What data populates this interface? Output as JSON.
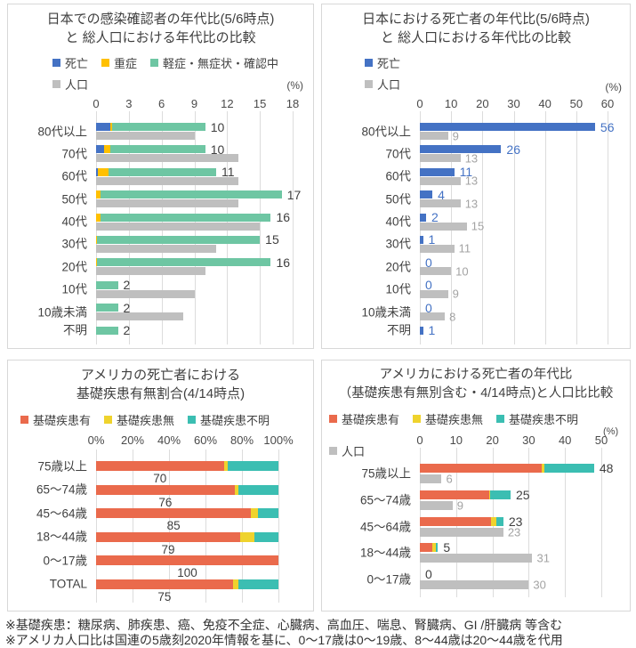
{
  "footer": {
    "line1": "※基礎疾患：糖尿病、肺疾患、癌、免疫不全症、心臓病、高血圧、喘息、腎臓病、GI /肝臓病 等含む",
    "line2": "※アメリカ人口比は国連の5歳刻2020年情報を基に、0〜17歳は0〜19歳、8〜44歳は20〜44歳を代用"
  },
  "colors": {
    "death_blue": "#4472C4",
    "severe_yellow": "#FFC000",
    "mild_green": "#6EC6A3",
    "population_gray": "#BFBFBF",
    "condition_red": "#EA6A4C",
    "no_condition_gold": "#EFD32D",
    "unknown_teal": "#3BBEB2",
    "gray_value_label": "#A3A3A3",
    "gridline": "#DCDCDC",
    "panel_border": "#D8D8D8",
    "text_dark": "#3F3F3F"
  },
  "chart_data": [
    {
      "type": "bar",
      "orientation": "horizontal",
      "title_lines": [
        "日本での感染確認者の年代比(5/6時点)",
        "と 総人口における年代比の比較"
      ],
      "percent_label": "(%)",
      "legend": [
        [
          {
            "label": "死亡",
            "color": "#4472C4"
          },
          {
            "label": "重症",
            "color": "#FFC000"
          },
          {
            "label": "軽症・無症状・確認中",
            "color": "#6EC6A3"
          }
        ],
        [
          {
            "label": "人口",
            "color": "#BFBFBF"
          }
        ]
      ],
      "series_names": [
        "死亡",
        "重症",
        "軽症・無症状・確認中"
      ],
      "series_colors": [
        "#4472C4",
        "#FFC000",
        "#6EC6A3"
      ],
      "population_color": "#BFBFBF",
      "axis": {
        "min": 0,
        "max": 18,
        "ticks": [
          "0",
          "3",
          "6",
          "9",
          "12",
          "15",
          "18"
        ]
      },
      "value_label_color": "#3F3F3F",
      "pop_labels": false,
      "label_below": false,
      "rows": [
        {
          "label": "80代以上",
          "segments": [
            1.3,
            0.2,
            8.5
          ],
          "value_label": "10",
          "population": 9,
          "population_label": null
        },
        {
          "label": "70代",
          "segments": [
            0.7,
            0.6,
            8.7
          ],
          "value_label": "10",
          "population": 13,
          "population_label": null
        },
        {
          "label": "60代",
          "segments": [
            0.2,
            0.9,
            9.9
          ],
          "value_label": "11",
          "population": 13,
          "population_label": null
        },
        {
          "label": "50代",
          "segments": [
            0,
            0.4,
            16.6
          ],
          "value_label": "17",
          "population": 13,
          "population_label": null
        },
        {
          "label": "40代",
          "segments": [
            0,
            0.4,
            15.6
          ],
          "value_label": "16",
          "population": 15,
          "population_label": null
        },
        {
          "label": "30代",
          "segments": [
            0,
            0.1,
            14.9
          ],
          "value_label": "15",
          "population": 11,
          "population_label": null
        },
        {
          "label": "20代",
          "segments": [
            0,
            0.1,
            15.9
          ],
          "value_label": "16",
          "population": 10,
          "population_label": null
        },
        {
          "label": "10代",
          "segments": [
            0,
            0,
            2
          ],
          "value_label": "2",
          "population": 9,
          "population_label": null
        },
        {
          "label": "10歳未満",
          "segments": [
            0,
            0,
            2
          ],
          "value_label": "2",
          "population": 8,
          "population_label": null
        },
        {
          "label": "不明",
          "segments": [
            0,
            0,
            2
          ],
          "value_label": "2",
          "population": null,
          "population_label": null
        }
      ]
    },
    {
      "type": "bar",
      "orientation": "horizontal",
      "title_lines": [
        "日本における死亡者の年代比(5/6時点)",
        "と 総人口における年代比の比較"
      ],
      "percent_label": "(%)",
      "legend": [
        [
          {
            "label": "死亡",
            "color": "#4472C4"
          }
        ],
        [
          {
            "label": "人口",
            "color": "#BFBFBF"
          }
        ]
      ],
      "series_names": [
        "死亡"
      ],
      "series_colors": [
        "#4472C4"
      ],
      "population_color": "#BFBFBF",
      "axis": {
        "min": 0,
        "max": 60,
        "ticks": [
          "0",
          "10",
          "20",
          "30",
          "40",
          "50",
          "60"
        ]
      },
      "value_label_color": "#4472C4",
      "pop_labels": true,
      "label_below": false,
      "rows": [
        {
          "label": "80代以上",
          "segments": [
            56
          ],
          "value_label": "56",
          "population": 9,
          "population_label": "9"
        },
        {
          "label": "70代",
          "segments": [
            26
          ],
          "value_label": "26",
          "population": 13,
          "population_label": "13"
        },
        {
          "label": "60代",
          "segments": [
            11
          ],
          "value_label": "11",
          "population": 13,
          "population_label": "13"
        },
        {
          "label": "50代",
          "segments": [
            4
          ],
          "value_label": "4",
          "population": 13,
          "population_label": "13"
        },
        {
          "label": "40代",
          "segments": [
            2
          ],
          "value_label": "2",
          "population": 15,
          "population_label": "15"
        },
        {
          "label": "30代",
          "segments": [
            1
          ],
          "value_label": "1",
          "population": 11,
          "population_label": "11"
        },
        {
          "label": "20代",
          "segments": [
            0
          ],
          "value_label": "0",
          "population": 10,
          "population_label": "10"
        },
        {
          "label": "10代",
          "segments": [
            0
          ],
          "value_label": "0",
          "population": 9,
          "population_label": "9"
        },
        {
          "label": "10歳未満",
          "segments": [
            0
          ],
          "value_label": "0",
          "population": 8,
          "population_label": "8"
        },
        {
          "label": "不明",
          "segments": [
            1
          ],
          "value_label": "1",
          "population": null,
          "population_label": null
        }
      ]
    },
    {
      "type": "bar",
      "orientation": "horizontal",
      "title_lines": [
        "アメリカの死亡者における",
        "基礎疾患有無割合(4/14時点)"
      ],
      "percent_label": null,
      "legend": [
        [
          {
            "label": "基礎疾患有",
            "color": "#EA6A4C"
          },
          {
            "label": "基礎疾患無",
            "color": "#EFD32D"
          },
          {
            "label": "基礎疾患不明",
            "color": "#3BBEB2"
          }
        ]
      ],
      "series_names": [
        "基礎疾患有",
        "基礎疾患無",
        "基礎疾患不明"
      ],
      "series_colors": [
        "#EA6A4C",
        "#EFD32D",
        "#3BBEB2"
      ],
      "population_color": null,
      "axis": {
        "min": 0,
        "max": 100,
        "ticks": [
          "0%",
          "20%",
          "40%",
          "60%",
          "80%",
          "100%"
        ]
      },
      "value_label_color": "#3F3F3F",
      "pop_labels": false,
      "label_below": true,
      "rows": [
        {
          "label": "75歳以上",
          "segments": [
            70,
            2,
            28
          ],
          "value_label": "70",
          "population": null,
          "population_label": null
        },
        {
          "label": "65〜74歳",
          "segments": [
            76,
            2,
            22
          ],
          "value_label": "76",
          "population": null,
          "population_label": null
        },
        {
          "label": "45〜64歳",
          "segments": [
            85,
            4,
            11
          ],
          "value_label": "85",
          "population": null,
          "population_label": null
        },
        {
          "label": "18〜44歳",
          "segments": [
            79,
            8,
            13
          ],
          "value_label": "79",
          "population": null,
          "population_label": null
        },
        {
          "label": "0〜17歳",
          "segments": [
            100,
            0,
            0
          ],
          "value_label": "100",
          "population": null,
          "population_label": null
        },
        {
          "label": "TOTAL",
          "segments": [
            75,
            3,
            22
          ],
          "value_label": "75",
          "population": null,
          "population_label": null
        }
      ]
    },
    {
      "type": "bar",
      "orientation": "horizontal",
      "title_lines": [
        "アメリカにおける死亡者の年代比",
        "（基礎疾患有無別含む・4/14時点)と人口比比較"
      ],
      "percent_label": "(%)",
      "legend": [
        [
          {
            "label": "基礎疾患有",
            "color": "#EA6A4C"
          },
          {
            "label": "基礎疾患無",
            "color": "#EFD32D"
          },
          {
            "label": "基礎疾患不明",
            "color": "#3BBEB2"
          }
        ],
        [
          {
            "label": "人口",
            "color": "#BFBFBF"
          }
        ]
      ],
      "series_names": [
        "基礎疾患有",
        "基礎疾患無",
        "基礎疾患不明"
      ],
      "series_colors": [
        "#EA6A4C",
        "#EFD32D",
        "#3BBEB2"
      ],
      "population_color": "#BFBFBF",
      "axis": {
        "min": 0,
        "max": 50,
        "ticks": [
          "0",
          "10",
          "20",
          "30",
          "40",
          "50"
        ]
      },
      "value_label_color": "#3F3F3F",
      "pop_labels": true,
      "label_below": false,
      "rows": [
        {
          "label": "75歳以上",
          "segments": [
            33.5,
            0.7,
            13.8
          ],
          "value_label": "48",
          "population": 6,
          "population_label": "6"
        },
        {
          "label": "65〜74歳",
          "segments": [
            19,
            0.4,
            5.6
          ],
          "value_label": "25",
          "population": 9,
          "population_label": "9"
        },
        {
          "label": "45〜64歳",
          "segments": [
            19.5,
            1.5,
            2
          ],
          "value_label": "23",
          "population": 23,
          "population_label": "23"
        },
        {
          "label": "18〜44歳",
          "segments": [
            3.5,
            0.9,
            0.6
          ],
          "value_label": "5",
          "population": 31,
          "population_label": "31"
        },
        {
          "label": "0〜17歳",
          "segments": [
            0,
            0,
            0
          ],
          "value_label": "0",
          "population": 30,
          "population_label": "30"
        }
      ]
    }
  ]
}
